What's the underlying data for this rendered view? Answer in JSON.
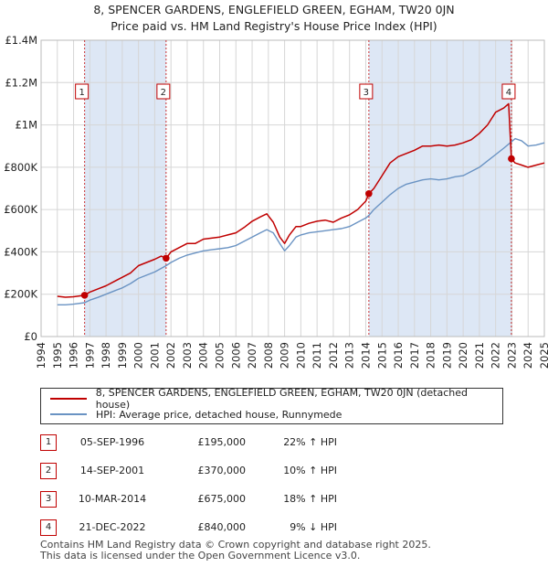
{
  "header": {
    "title_line1": "8, SPENCER GARDENS, ENGLEFIELD GREEN, EGHAM, TW20 0JN",
    "title_line2": "Price paid vs. HM Land Registry's House Price Index (HPI)"
  },
  "colors": {
    "property_line": "#c00000",
    "hpi_line": "#6a93c3",
    "shade": "#dde7f5",
    "grid": "#d6d6d6",
    "marker_border": "#c00000"
  },
  "chart_data": {
    "type": "line",
    "x_range": [
      1994.0,
      2025.0
    ],
    "ylim": [
      0,
      1400000
    ],
    "y_ticks": [
      {
        "value": 0,
        "label": "£0"
      },
      {
        "value": 200000,
        "label": "£200K"
      },
      {
        "value": 400000,
        "label": "£400K"
      },
      {
        "value": 600000,
        "label": "£600K"
      },
      {
        "value": 800000,
        "label": "£800K"
      },
      {
        "value": 1000000,
        "label": "£1M"
      },
      {
        "value": 1200000,
        "label": "£1.2M"
      },
      {
        "value": 1400000,
        "label": "£1.4M"
      }
    ],
    "x_ticks": [
      "1994",
      "1995",
      "1996",
      "1997",
      "1998",
      "1999",
      "2000",
      "2001",
      "2002",
      "2003",
      "2004",
      "2005",
      "2006",
      "2007",
      "2008",
      "2009",
      "2010",
      "2011",
      "2012",
      "2013",
      "2014",
      "2015",
      "2016",
      "2017",
      "2018",
      "2019",
      "2020",
      "2021",
      "2022",
      "2023",
      "2024",
      "2025"
    ],
    "grid": true,
    "shaded_periods": [
      [
        1996.68,
        2001.7
      ],
      [
        2014.19,
        2022.97
      ]
    ],
    "sales": [
      {
        "label": "1",
        "x": 1996.68,
        "price": 195000
      },
      {
        "label": "2",
        "x": 2001.7,
        "price": 370000
      },
      {
        "label": "3",
        "x": 2014.19,
        "price": 675000
      },
      {
        "label": "4",
        "x": 2022.97,
        "price": 840000
      }
    ],
    "series": [
      {
        "name": "8, SPENCER GARDENS, ENGLEFIELD GREEN, EGHAM, TW20 0JN (detached house)",
        "x": [
          1995.0,
          1995.5,
          1996.0,
          1996.68,
          1997.0,
          1997.5,
          1998.0,
          1998.5,
          1999.0,
          1999.5,
          2000.0,
          2000.5,
          2001.0,
          2001.4,
          2001.7,
          2002.0,
          2002.5,
          2003.0,
          2003.5,
          2004.0,
          2004.5,
          2005.0,
          2005.5,
          2006.0,
          2006.5,
          2007.0,
          2007.5,
          2007.9,
          2008.3,
          2008.7,
          2009.0,
          2009.3,
          2009.7,
          2010.0,
          2010.5,
          2011.0,
          2011.5,
          2012.0,
          2012.5,
          2013.0,
          2013.5,
          2014.0,
          2014.19,
          2014.5,
          2015.0,
          2015.5,
          2016.0,
          2016.5,
          2017.0,
          2017.5,
          2018.0,
          2018.5,
          2019.0,
          2019.5,
          2020.0,
          2020.5,
          2021.0,
          2021.5,
          2022.0,
          2022.5,
          2022.8,
          2022.97,
          2023.2,
          2023.6,
          2024.0,
          2024.5,
          2025.0
        ],
        "values": [
          190000,
          186000,
          188000,
          195000,
          210000,
          225000,
          240000,
          260000,
          280000,
          300000,
          335000,
          350000,
          365000,
          380000,
          370000,
          400000,
          420000,
          440000,
          440000,
          460000,
          465000,
          470000,
          480000,
          490000,
          515000,
          545000,
          565000,
          580000,
          540000,
          470000,
          440000,
          480000,
          520000,
          520000,
          535000,
          545000,
          550000,
          540000,
          560000,
          575000,
          600000,
          640000,
          675000,
          700000,
          760000,
          820000,
          850000,
          865000,
          880000,
          900000,
          900000,
          905000,
          900000,
          905000,
          915000,
          930000,
          960000,
          1000000,
          1060000,
          1080000,
          1100000,
          840000,
          820000,
          810000,
          800000,
          810000,
          820000
        ]
      },
      {
        "name": "HPI: Average price, detached house, Runnymede",
        "x": [
          1995.0,
          1995.5,
          1996.0,
          1996.68,
          1997.0,
          1997.5,
          1998.0,
          1998.5,
          1999.0,
          1999.5,
          2000.0,
          2000.5,
          2001.0,
          2001.7,
          2002.0,
          2002.5,
          2003.0,
          2003.5,
          2004.0,
          2004.5,
          2005.0,
          2005.5,
          2006.0,
          2006.5,
          2007.0,
          2007.5,
          2007.9,
          2008.3,
          2008.7,
          2009.0,
          2009.3,
          2009.7,
          2010.0,
          2010.5,
          2011.0,
          2011.5,
          2012.0,
          2012.5,
          2013.0,
          2013.5,
          2014.0,
          2014.19,
          2014.5,
          2015.0,
          2015.5,
          2016.0,
          2016.5,
          2017.0,
          2017.5,
          2018.0,
          2018.5,
          2019.0,
          2019.5,
          2020.0,
          2020.5,
          2021.0,
          2021.5,
          2022.0,
          2022.5,
          2022.97,
          2023.2,
          2023.6,
          2024.0,
          2024.5,
          2025.0
        ],
        "values": [
          150000,
          150000,
          153000,
          160000,
          172000,
          185000,
          200000,
          215000,
          230000,
          250000,
          275000,
          290000,
          305000,
          335000,
          350000,
          370000,
          385000,
          395000,
          405000,
          410000,
          415000,
          420000,
          430000,
          450000,
          470000,
          490000,
          505000,
          490000,
          440000,
          405000,
          430000,
          470000,
          480000,
          490000,
          495000,
          500000,
          505000,
          510000,
          520000,
          540000,
          560000,
          572000,
          600000,
          635000,
          670000,
          700000,
          720000,
          730000,
          740000,
          745000,
          740000,
          745000,
          755000,
          760000,
          780000,
          800000,
          830000,
          860000,
          890000,
          920000,
          935000,
          925000,
          900000,
          905000,
          915000
        ]
      }
    ]
  },
  "legend": {
    "property_label": "8, SPENCER GARDENS, ENGLEFIELD GREEN, EGHAM, TW20 0JN (detached house)",
    "hpi_label": "HPI: Average price, detached house, Runnymede"
  },
  "transactions": [
    {
      "num": "1",
      "date": "05-SEP-1996",
      "price": "£195,000",
      "hpi": "22% ↑ HPI"
    },
    {
      "num": "2",
      "date": "14-SEP-2001",
      "price": "£370,000",
      "hpi": "10% ↑ HPI"
    },
    {
      "num": "3",
      "date": "10-MAR-2014",
      "price": "£675,000",
      "hpi": "18% ↑ HPI"
    },
    {
      "num": "4",
      "date": "21-DEC-2022",
      "price": "£840,000",
      "hpi": "9% ↓ HPI"
    }
  ],
  "footer": {
    "line1": "Contains HM Land Registry data © Crown copyright and database right 2025.",
    "line2": "This data is licensed under the Open Government Licence v3.0."
  }
}
